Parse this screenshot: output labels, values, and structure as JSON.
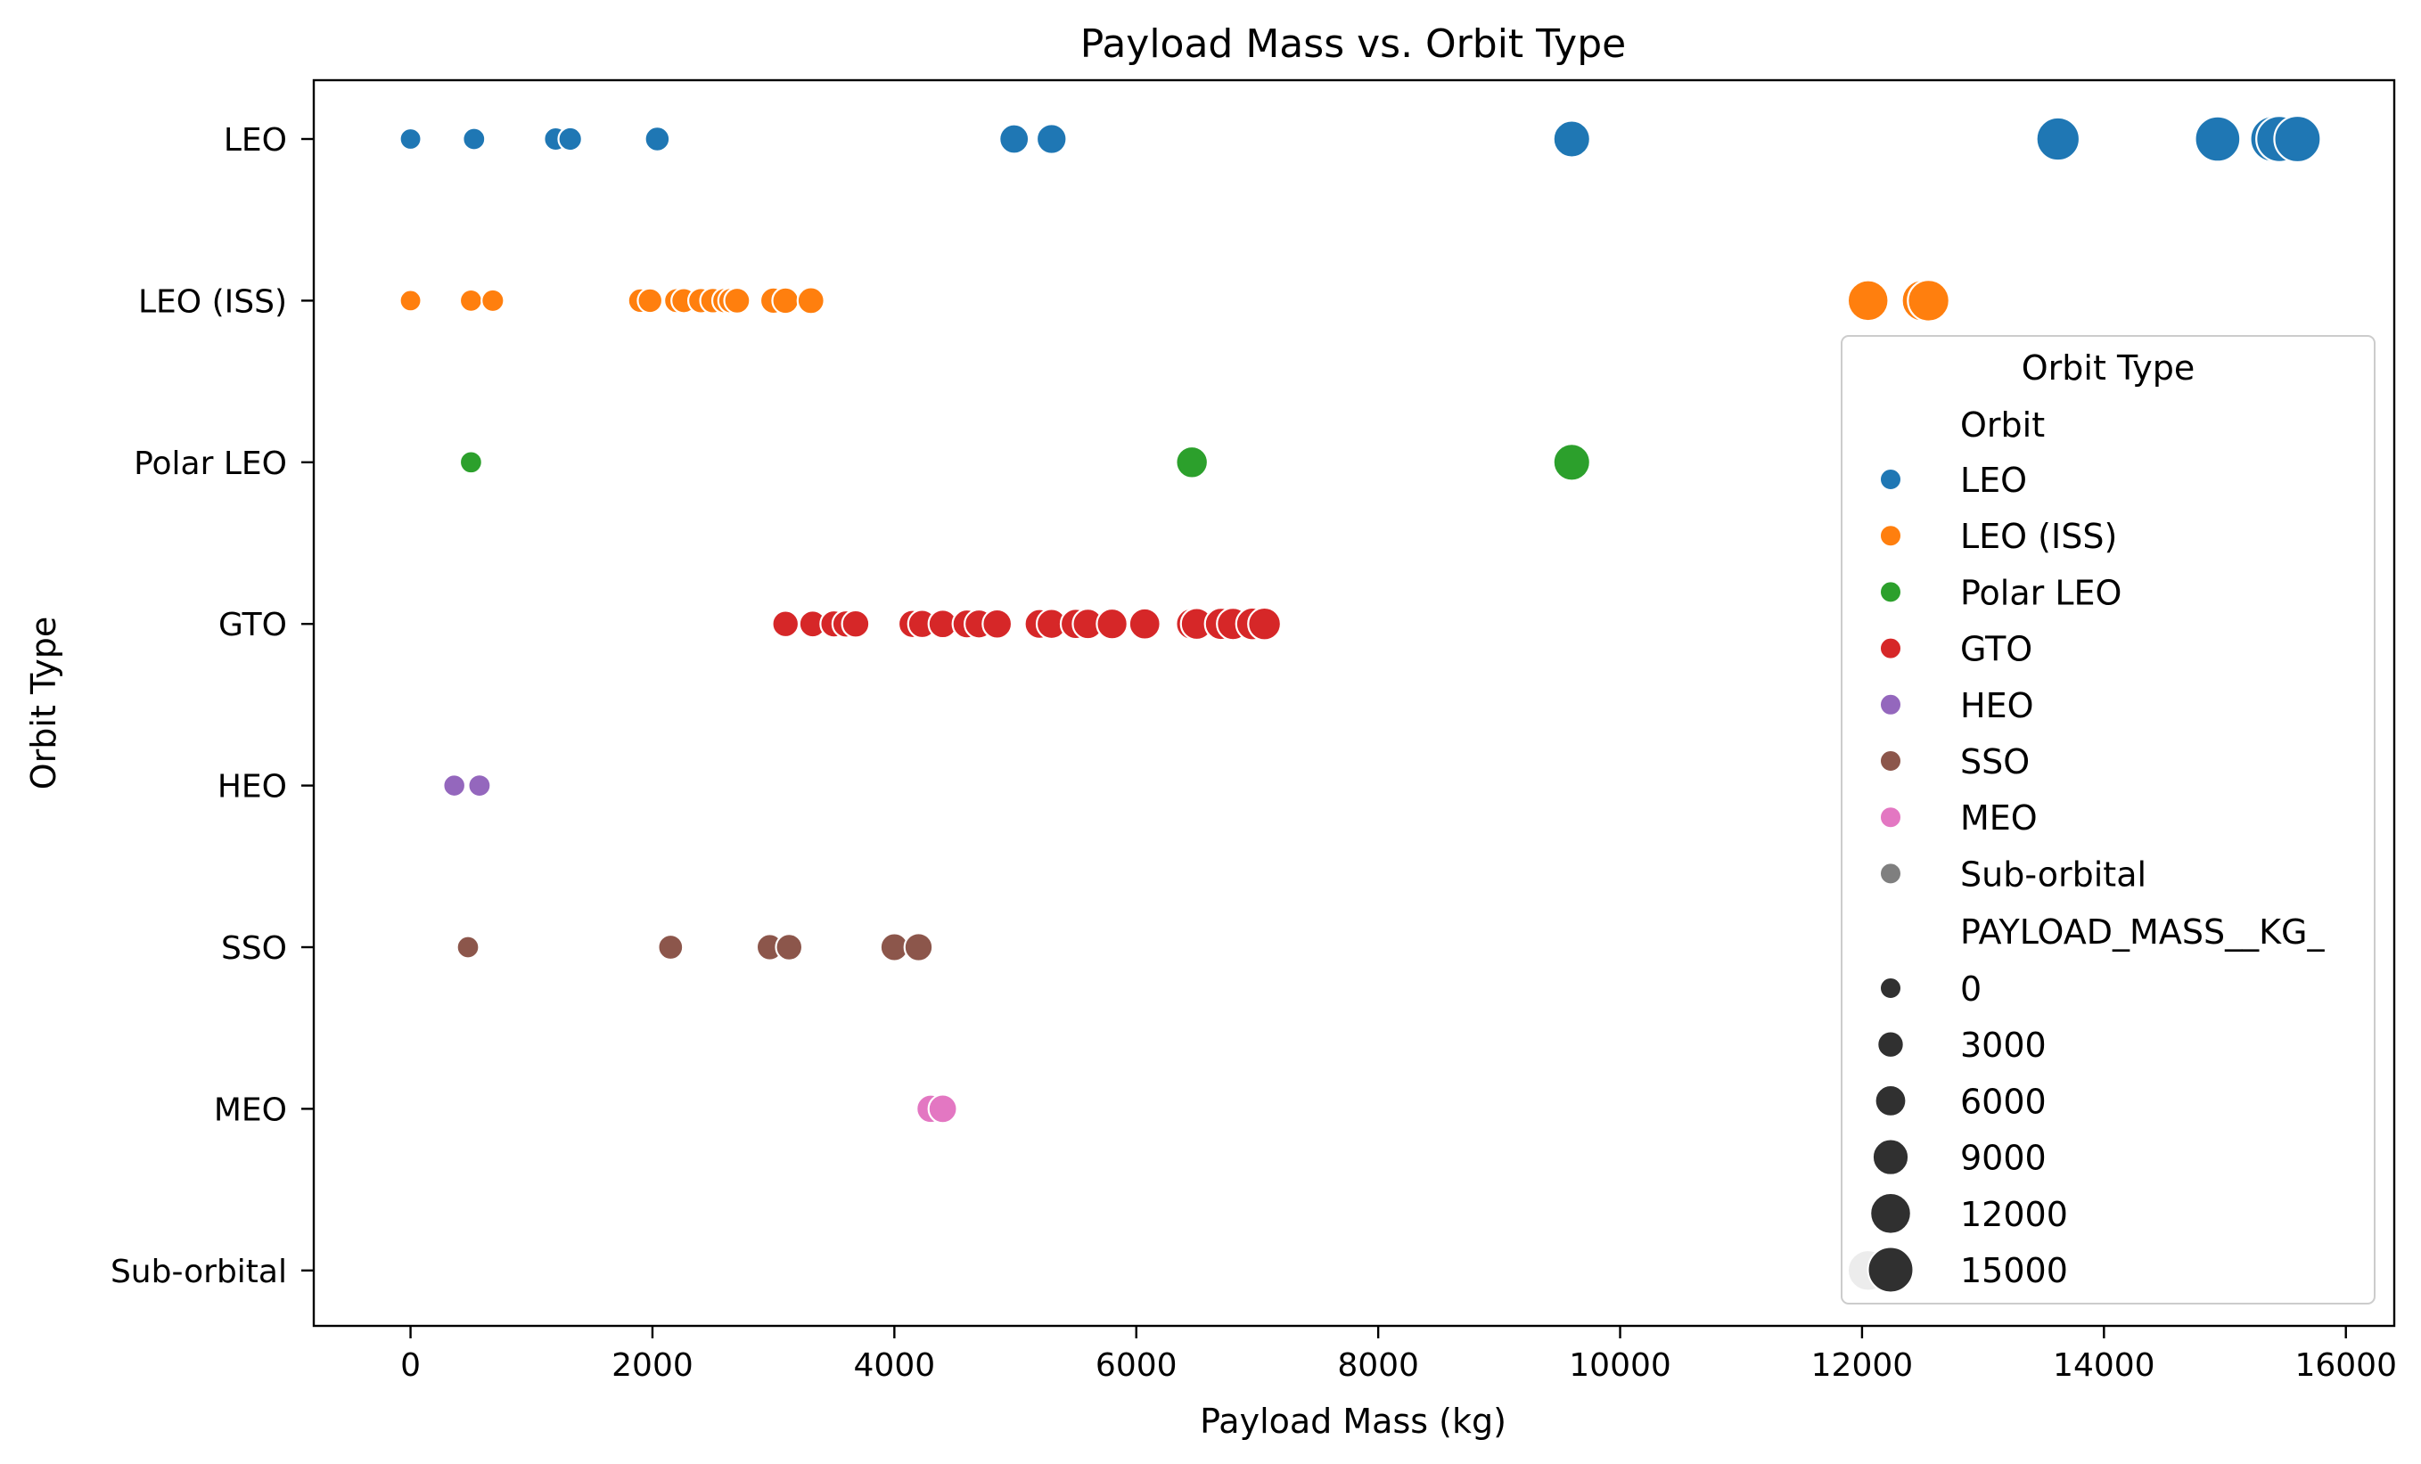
{
  "chart_data": {
    "type": "scatter",
    "title": "Payload Mass vs. Orbit Type",
    "xlabel": "Payload Mass (kg)",
    "ylabel": "Orbit Type",
    "xlim": [
      -800,
      16400
    ],
    "x_ticks": [
      0,
      2000,
      4000,
      6000,
      8000,
      10000,
      12000,
      14000,
      16000
    ],
    "categories": [
      "LEO",
      "LEO (ISS)",
      "Polar LEO",
      "GTO",
      "HEO",
      "SSO",
      "MEO",
      "Sub-orbital"
    ],
    "grid": false,
    "legend": {
      "title": "Orbit Type",
      "placement": "right",
      "hue_title": "Orbit",
      "size_title": "PAYLOAD_MASS__KG_",
      "size_entries": [
        0,
        3000,
        6000,
        9000,
        12000,
        15000
      ]
    },
    "series": [
      {
        "name": "LEO",
        "color": "#1f77b4",
        "y": "LEO",
        "x": [
          0,
          525,
          1200,
          1320,
          2040,
          4990,
          5300,
          9600,
          13620,
          14940,
          15400,
          15450,
          15600
        ]
      },
      {
        "name": "LEO (ISS)",
        "color": "#ff7f0e",
        "y": "LEO (ISS)",
        "x": [
          0,
          500,
          680,
          1900,
          1980,
          2200,
          2260,
          2400,
          2500,
          2600,
          2650,
          2700,
          3000,
          3100,
          3310,
          12050,
          12500,
          12550
        ]
      },
      {
        "name": "Polar LEO",
        "color": "#2ca02c",
        "y": "Polar LEO",
        "x": [
          500,
          6460,
          9600
        ]
      },
      {
        "name": "GTO",
        "color": "#d62728",
        "y": "GTO",
        "x": [
          3100,
          3325,
          3500,
          3600,
          3680,
          4150,
          4230,
          4400,
          4600,
          4700,
          4850,
          5200,
          5300,
          5500,
          5600,
          5800,
          6070,
          6460,
          6500,
          6700,
          6800,
          6960,
          7060
        ]
      },
      {
        "name": "HEO",
        "color": "#9467bd",
        "y": "HEO",
        "x": [
          362,
          570
        ]
      },
      {
        "name": "SSO",
        "color": "#8c564b",
        "y": "SSO",
        "x": [
          475,
          2150,
          2970,
          3130,
          4000,
          4200
        ]
      },
      {
        "name": "MEO",
        "color": "#e377c2",
        "y": "MEO",
        "x": [
          4300,
          4400
        ]
      },
      {
        "name": "Sub-orbital",
        "color": "#7f7f7f",
        "y": "Sub-orbital",
        "x": [
          12050
        ]
      }
    ],
    "size_note": "marker size proportional to payload mass"
  }
}
